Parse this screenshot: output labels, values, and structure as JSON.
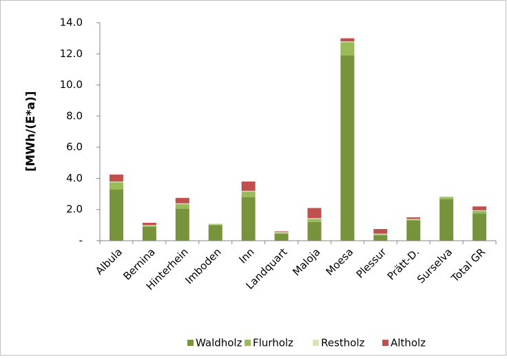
{
  "chart_data": {
    "type": "stacked_bar",
    "y_label": "[MWh/(E*a)]",
    "categories": [
      "Albula",
      "Bernina",
      "Hinterhein",
      "Imboden",
      "Inn",
      "Landquart",
      "Maloja",
      "Moesa",
      "Plessur",
      "Prätt-D.",
      "Surselva",
      "Total GR"
    ],
    "series": [
      {
        "name": "Waldholz",
        "color": "#77933c",
        "values": [
          3.3,
          0.9,
          2.05,
          1.0,
          2.8,
          0.45,
          1.2,
          11.9,
          0.35,
          1.3,
          2.65,
          1.75
        ]
      },
      {
        "name": "Flurholz",
        "color": "#9bbb59",
        "values": [
          0.45,
          0.05,
          0.3,
          0.05,
          0.35,
          0.05,
          0.2,
          0.85,
          0.05,
          0.05,
          0.15,
          0.15
        ]
      },
      {
        "name": "Restholz",
        "color": "#d7e4bd",
        "values": [
          0.05,
          0.05,
          0.05,
          0.05,
          0.05,
          0.05,
          0.05,
          0.05,
          0.05,
          0.05,
          0.05,
          0.05
        ]
      },
      {
        "name": "Altholz",
        "color": "#c0504d",
        "values": [
          0.45,
          0.15,
          0.35,
          0.0,
          0.6,
          0.05,
          0.65,
          0.2,
          0.3,
          0.1,
          0.0,
          0.25
        ]
      }
    ],
    "ylim": [
      0,
      14
    ],
    "yticks": [
      {
        "value": 0,
        "label": "-"
      },
      {
        "value": 2,
        "label": "2.0"
      },
      {
        "value": 4,
        "label": "4.0"
      },
      {
        "value": 6,
        "label": "6.0"
      },
      {
        "value": 8,
        "label": "8.0"
      },
      {
        "value": 10,
        "label": "10.0"
      },
      {
        "value": 12,
        "label": "12.0"
      },
      {
        "value": 14,
        "label": "14.0"
      }
    ],
    "legend": "bottom"
  }
}
